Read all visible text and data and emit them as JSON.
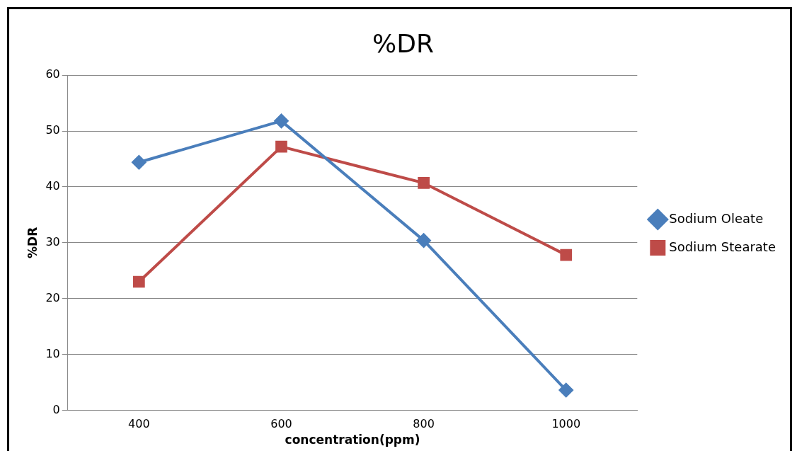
{
  "chart_data": {
    "type": "line",
    "title": "%DR",
    "xlabel": "concentration(ppm)",
    "ylabel": "%DR",
    "categories": [
      "400",
      "600",
      "800",
      "1000"
    ],
    "series": [
      {
        "name": "Sodium Oleate",
        "color": "#4a7ebb",
        "marker": "diamond",
        "values": [
          44.4,
          51.8,
          30.4,
          3.6
        ]
      },
      {
        "name": "Sodium Stearate",
        "color": "#be4b48",
        "marker": "square",
        "values": [
          23.0,
          47.2,
          40.7,
          27.8
        ]
      }
    ],
    "ylim": [
      0,
      60
    ],
    "yticks": [
      0,
      10,
      20,
      30,
      40,
      50,
      60
    ],
    "grid": "y",
    "legend": "right",
    "line_style": "solid"
  }
}
